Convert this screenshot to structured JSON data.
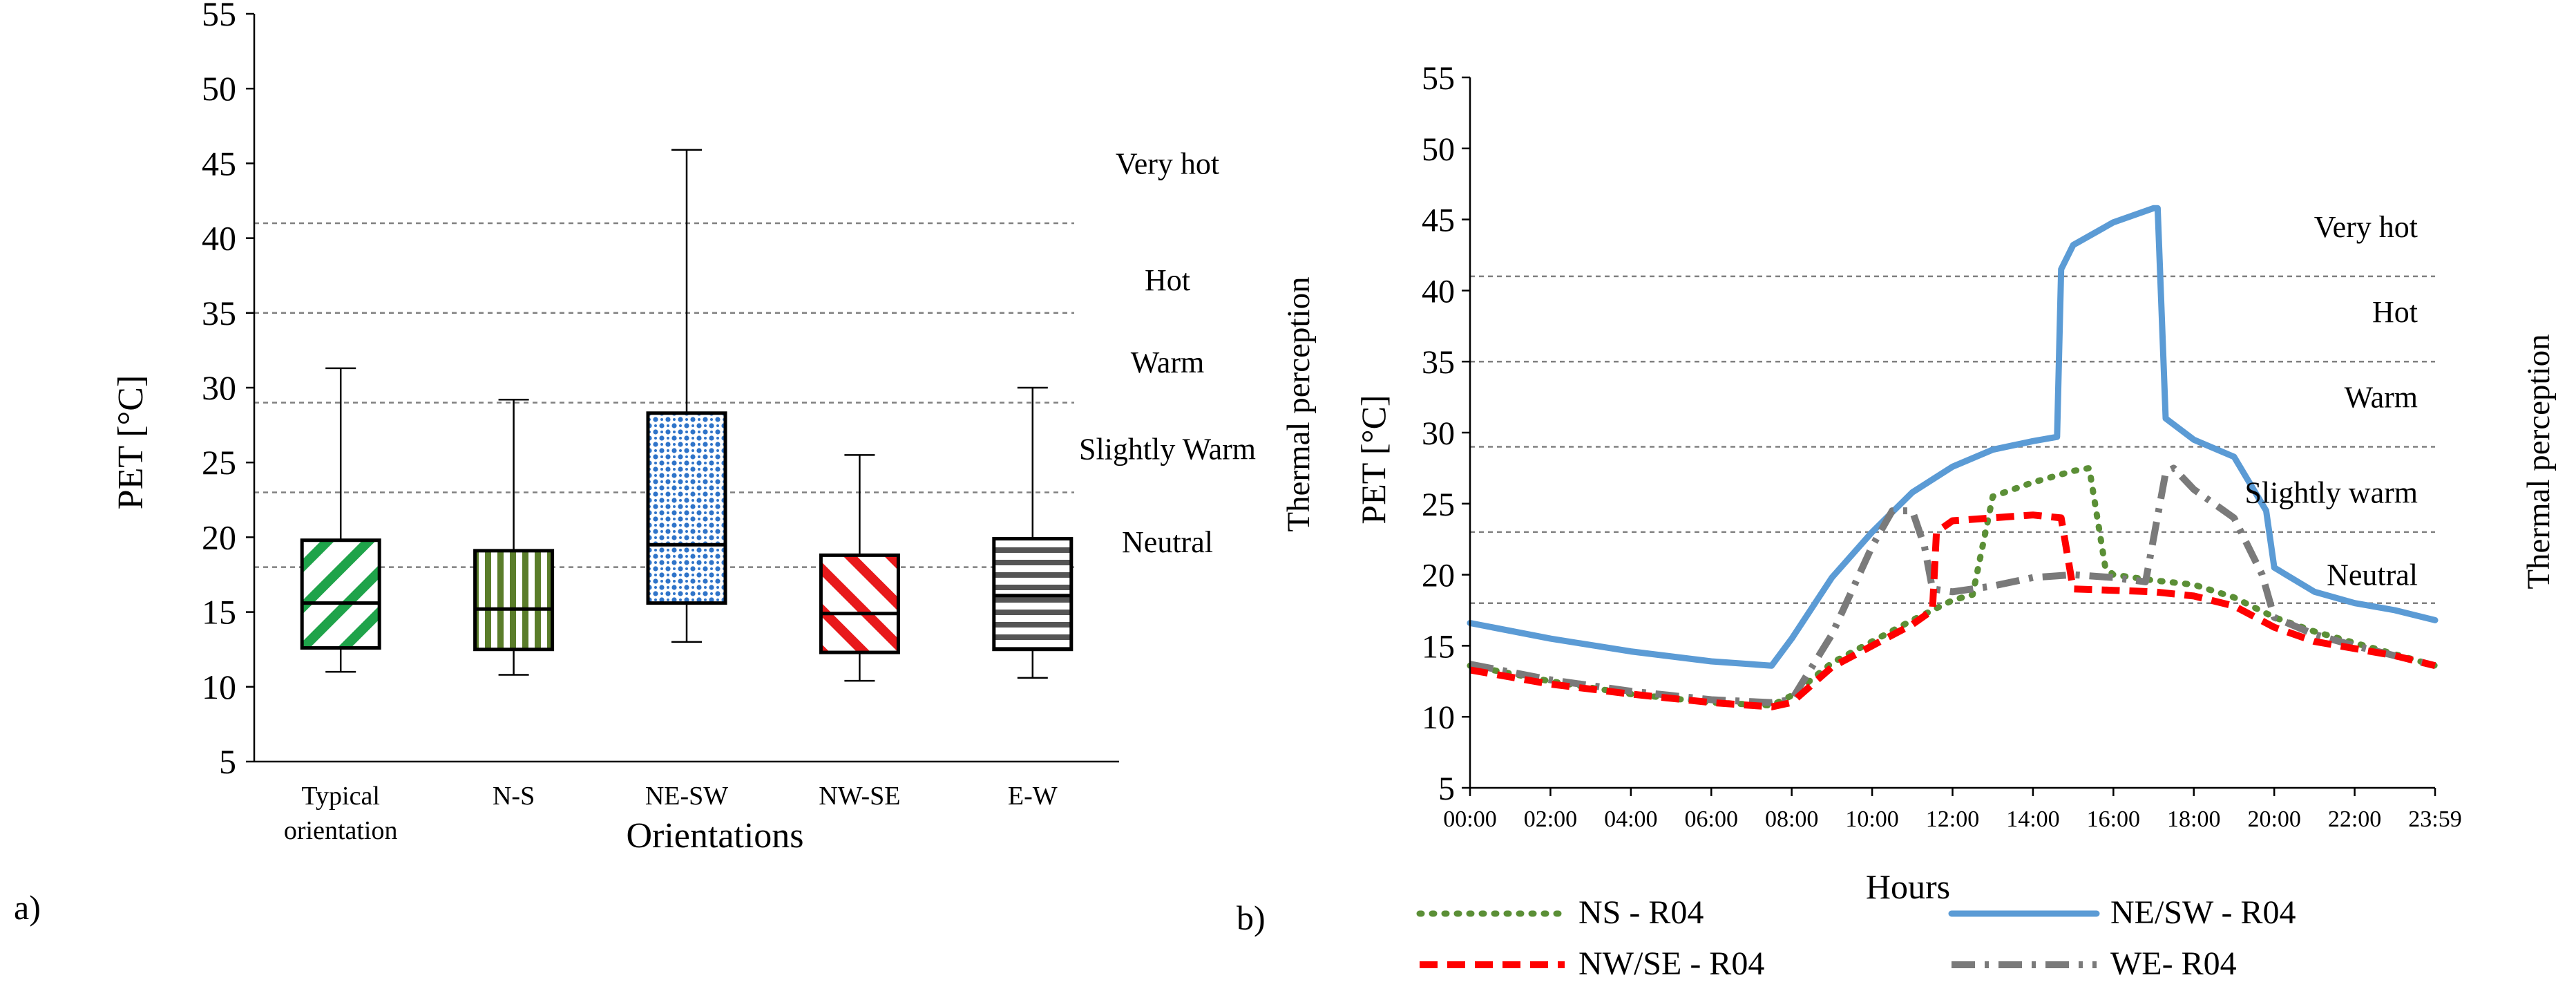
{
  "panel_labels": {
    "a": "a)",
    "b": "b)"
  },
  "colors": {
    "typical": "#1fa34a",
    "ns": "#5a7d2a",
    "nesw": "#2f74c9",
    "nwse": "#e8191b",
    "ew": "#555555",
    "line_ns": "#5b8f36",
    "line_nesw": "#5b9bd5",
    "line_nwse": "#ff0000",
    "line_we": "#7a7a7a",
    "threshold": "#808080"
  },
  "chart_data": [
    {
      "type": "box",
      "panel": "a",
      "xlabel": "Orientations",
      "ylabel": "PET [°C]",
      "right_label": "Thermal perception",
      "ylim": [
        5,
        55
      ],
      "yticks": [
        5,
        10,
        15,
        20,
        25,
        30,
        35,
        40,
        45,
        50,
        55
      ],
      "categories": [
        {
          "label_lines": [
            "Typical",
            "orientation"
          ],
          "key": "typical",
          "pattern": "diag-right",
          "min": 11,
          "q1": 12.6,
          "median": 15.6,
          "q3": 19.8,
          "max": 31.3
        },
        {
          "label_lines": [
            "N-S"
          ],
          "key": "ns",
          "pattern": "vertical",
          "min": 10.8,
          "q1": 12.5,
          "median": 15.2,
          "q3": 19.1,
          "max": 29.2
        },
        {
          "label_lines": [
            "NE-SW"
          ],
          "key": "nesw",
          "pattern": "dots",
          "min": 13,
          "q1": 15.6,
          "median": 19.5,
          "q3": 28.3,
          "max": 45.9
        },
        {
          "label_lines": [
            "NW-SE"
          ],
          "key": "nwse",
          "pattern": "diag-left",
          "min": 10.4,
          "q1": 12.3,
          "median": 14.9,
          "q3": 18.8,
          "max": 25.5
        },
        {
          "label_lines": [
            "E-W"
          ],
          "key": "ew",
          "pattern": "horizontal",
          "min": 10.6,
          "q1": 12.5,
          "median": 16.1,
          "q3": 19.9,
          "max": 30
        }
      ],
      "thresholds": [
        {
          "value": 41,
          "label": "Very hot",
          "label_y": 45
        },
        {
          "value": 35,
          "label": "Hot",
          "label_y": 37.2
        },
        {
          "value": 29,
          "label": "Warm",
          "label_y": 31.7
        },
        {
          "value": 23,
          "label": "Slightly Warm",
          "label_y": 25.9
        },
        {
          "value": 18,
          "label": "Neutral",
          "label_y": 19.7
        }
      ]
    },
    {
      "type": "line",
      "panel": "b",
      "xlabel": "Hours",
      "ylabel": "PET [°C]",
      "right_label": "Thermal perception",
      "xlim": [
        0,
        24
      ],
      "ylim": [
        5,
        55
      ],
      "yticks": [
        5,
        10,
        15,
        20,
        25,
        30,
        35,
        40,
        45,
        50,
        55
      ],
      "xticks": [
        "00:00",
        "02:00",
        "04:00",
        "06:00",
        "08:00",
        "10:00",
        "12:00",
        "14:00",
        "16:00",
        "18:00",
        "20:00",
        "22:00",
        "23:59"
      ],
      "thresholds": [
        {
          "value": 41,
          "label": "Very hot",
          "label_y": 44.5
        },
        {
          "value": 35,
          "label": "Hot",
          "label_y": 38.5
        },
        {
          "value": 29,
          "label": "Warm",
          "label_y": 32.5
        },
        {
          "value": 23,
          "label": "Slightly warm",
          "label_y": 25.8
        },
        {
          "value": 18,
          "label": "Neutral",
          "label_y": 20
        }
      ],
      "series": [
        {
          "name": "NE/SW - R04",
          "key": "line_nesw",
          "dash": "solid",
          "x": [
            0,
            2,
            4,
            6,
            7.5,
            8,
            9,
            10,
            11,
            12,
            13,
            14,
            14.6,
            14.7,
            15,
            16,
            17,
            17.1,
            17.3,
            18,
            19,
            19.8,
            20,
            21,
            22,
            23,
            24
          ],
          "y": [
            16.6,
            15.5,
            14.6,
            13.9,
            13.6,
            15.5,
            19.8,
            23.0,
            25.8,
            27.6,
            28.8,
            29.4,
            29.7,
            41.5,
            43.2,
            44.8,
            45.8,
            45.8,
            31,
            29.5,
            28.3,
            24.5,
            20.5,
            18.8,
            18.0,
            17.5,
            16.8
          ]
        },
        {
          "name": "NS - R04",
          "key": "line_ns",
          "dash": "dotted",
          "x": [
            0,
            2,
            4,
            6,
            7.5,
            8,
            9,
            10,
            11,
            12,
            12.5,
            13,
            14,
            15,
            15.4,
            15.8,
            16,
            17,
            18,
            19,
            20,
            21,
            22,
            23,
            24
          ],
          "y": [
            13.6,
            12.5,
            11.6,
            11.0,
            10.8,
            11.5,
            13.8,
            15.3,
            16.8,
            18.2,
            18.6,
            25.5,
            26.5,
            27.3,
            27.5,
            20.5,
            20.0,
            19.6,
            19.3,
            18.4,
            17.0,
            16.0,
            15.2,
            14.4,
            13.6
          ]
        },
        {
          "name": "NW/SE - R04",
          "key": "line_nwse",
          "dash": "dashed",
          "x": [
            0,
            2,
            4,
            6,
            7.5,
            8,
            9,
            10,
            11,
            11.5,
            11.6,
            12,
            13,
            14,
            14.7,
            15,
            16,
            17,
            18,
            19,
            20,
            21,
            22,
            23,
            24
          ],
          "y": [
            13.3,
            12.3,
            11.6,
            11.0,
            10.7,
            11.0,
            13.5,
            15.0,
            16.5,
            17.5,
            23.0,
            23.8,
            24.0,
            24.2,
            24.0,
            19.0,
            18.9,
            18.8,
            18.5,
            17.8,
            16.3,
            15.3,
            14.8,
            14.3,
            13.6
          ]
        },
        {
          "name": "WE- R04",
          "key": "line_we",
          "dash": "dashdot",
          "x": [
            0,
            2,
            4,
            6,
            7.5,
            8,
            9,
            10,
            10.5,
            11,
            11.3,
            11.5,
            12,
            13,
            14,
            15,
            16,
            16.8,
            17.3,
            17.5,
            18,
            19,
            19.7,
            20,
            21,
            22,
            23,
            24
          ],
          "y": [
            13.7,
            12.6,
            11.8,
            11.2,
            11.0,
            11.2,
            15.8,
            22.0,
            24.5,
            24.5,
            22.0,
            19.0,
            18.8,
            19.2,
            19.8,
            20.0,
            19.8,
            19.5,
            27.2,
            27.5,
            26.0,
            24.0,
            20.0,
            17.0,
            15.8,
            15.0,
            14.3,
            13.6
          ]
        }
      ]
    }
  ]
}
